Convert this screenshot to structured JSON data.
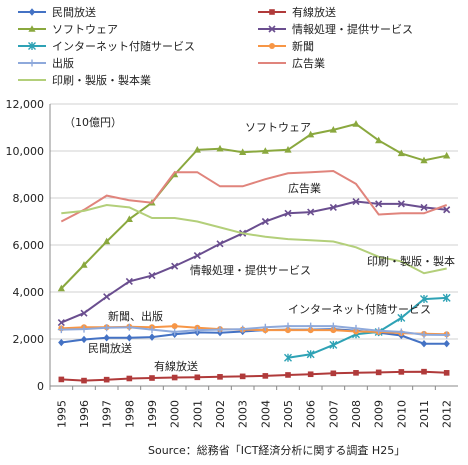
{
  "chart_data": {
    "type": "line",
    "unit_label": "（10億円）",
    "source": "Source：総務省「ICT経済分析に関する調査 H25」",
    "x": [
      "1995",
      "1996",
      "1997",
      "1998",
      "1999",
      "2000",
      "2001",
      "2002",
      "2003",
      "2004",
      "2005",
      "2006",
      "2007",
      "2008",
      "2009",
      "2010",
      "2011",
      "2012"
    ],
    "ylim": [
      0,
      12000
    ],
    "yticks": [
      "0",
      "2,000",
      "4,000",
      "6,000",
      "8,000",
      "10,000",
      "12,000"
    ],
    "grid": true,
    "legend_position": "top",
    "series": [
      {
        "name": "民間放送",
        "color": "#4472C4",
        "marker": "diamond",
        "label": "民間放送",
        "values": [
          1850,
          1980,
          2050,
          2050,
          2080,
          2200,
          2280,
          2270,
          2320,
          2380,
          2400,
          2400,
          2420,
          2350,
          2270,
          2150,
          1800,
          1800
        ]
      },
      {
        "name": "有線放送",
        "color": "#B03A3A",
        "marker": "square",
        "label": "有線放送",
        "values": [
          280,
          230,
          270,
          320,
          340,
          360,
          370,
          390,
          410,
          430,
          470,
          500,
          540,
          560,
          580,
          600,
          610,
          560
        ]
      },
      {
        "name": "ソフトウェア",
        "color": "#8AA83E",
        "marker": "triangle",
        "label": "ソフトウェア",
        "values": [
          4150,
          5150,
          6150,
          7100,
          7800,
          9000,
          10050,
          10100,
          9950,
          10000,
          10050,
          10700,
          10900,
          11150,
          10450,
          9900,
          9600,
          9800
        ]
      },
      {
        "name": "情報処理・提供サービス",
        "color": "#6A4E8F",
        "marker": "x",
        "label": "情報処理・提供サービス",
        "values": [
          2700,
          3100,
          3800,
          4450,
          4700,
          5100,
          5550,
          6050,
          6500,
          7000,
          7350,
          7400,
          7600,
          7850,
          7750,
          7750,
          7600,
          7500
        ]
      },
      {
        "name": "インターネット付随サービス",
        "color": "#2EA2B5",
        "marker": "star",
        "label": "インターネット付随サービス",
        "values": [
          null,
          null,
          null,
          null,
          null,
          null,
          null,
          null,
          null,
          null,
          1200,
          1350,
          1750,
          2200,
          2300,
          2900,
          3700,
          3750
        ]
      },
      {
        "name": "新聞",
        "color": "#F79646",
        "marker": "circle",
        "label": "",
        "values": [
          2450,
          2500,
          2500,
          2520,
          2500,
          2550,
          2480,
          2420,
          2400,
          2380,
          2380,
          2380,
          2380,
          2320,
          2300,
          2250,
          2220,
          2200
        ]
      },
      {
        "name": "出版",
        "color": "#8EA9DB",
        "marker": "plus",
        "label": "",
        "values": [
          2400,
          2420,
          2480,
          2500,
          2400,
          2300,
          2380,
          2400,
          2420,
          2500,
          2550,
          2550,
          2550,
          2450,
          2350,
          2300,
          2180,
          2170
        ]
      },
      {
        "name": "広告業",
        "color": "#E0847C",
        "marker": "none",
        "label": "広告業",
        "values": [
          7000,
          7500,
          8100,
          7900,
          7800,
          9100,
          9100,
          8500,
          8500,
          8800,
          9050,
          9100,
          9150,
          8600,
          7300,
          7350,
          7350,
          7700
        ]
      },
      {
        "name": "印刷・製版・製本業",
        "color": "#B3CF7A",
        "marker": "none",
        "label": "印刷・製版・製本",
        "values": [
          7350,
          7450,
          7700,
          7600,
          7150,
          7150,
          7000,
          6750,
          6500,
          6350,
          6250,
          6200,
          6150,
          5900,
          5500,
          5300,
          4800,
          5000
        ]
      }
    ],
    "annotations": [
      {
        "text": "新聞、出版"
      }
    ]
  }
}
